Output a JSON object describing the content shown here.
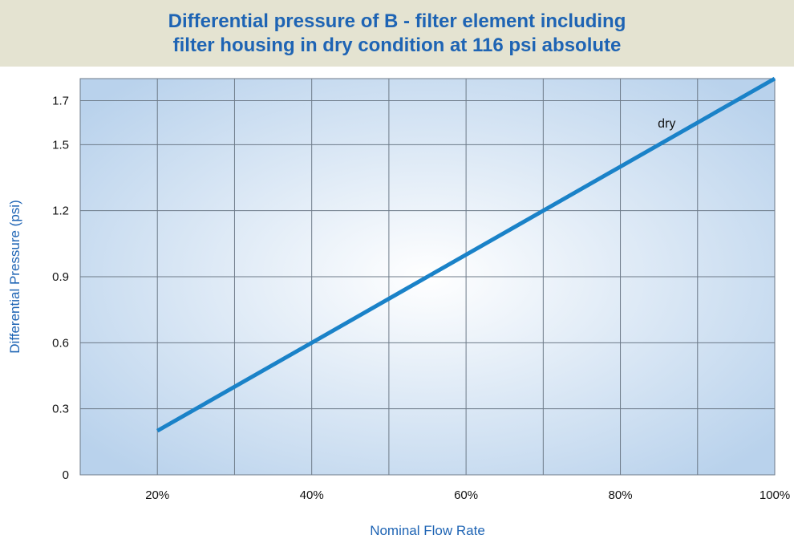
{
  "chart_data": {
    "type": "line",
    "title_lines": [
      "Differential pressure of B - filter element including",
      "filter housing in dry condition at 116 psi absolute"
    ],
    "xlabel": "Nominal Flow Rate",
    "ylabel": "Differential Pressure (psi)",
    "x_ticks": [
      {
        "value": 20,
        "label": "20%"
      },
      {
        "value": 40,
        "label": "40%"
      },
      {
        "value": 60,
        "label": "60%"
      },
      {
        "value": 80,
        "label": "80%"
      },
      {
        "value": 100,
        "label": "100%"
      }
    ],
    "y_ticks": [
      {
        "value": 0,
        "label": "0"
      },
      {
        "value": 0.3,
        "label": "0.3"
      },
      {
        "value": 0.6,
        "label": "0.6"
      },
      {
        "value": 0.9,
        "label": "0.9"
      },
      {
        "value": 1.2,
        "label": "1.2"
      },
      {
        "value": 1.5,
        "label": "1.5"
      },
      {
        "value": 1.7,
        "label": "1.7"
      }
    ],
    "xlim": [
      10,
      100
    ],
    "ylim": [
      0,
      1.8
    ],
    "x_gridlines": [
      10,
      20,
      30,
      40,
      50,
      60,
      70,
      80,
      90,
      100
    ],
    "grid": true,
    "series": [
      {
        "name": "dry",
        "color": "#1a82c8",
        "points": [
          [
            20,
            0.2
          ],
          [
            100,
            1.8
          ]
        ],
        "label_at": [
          86,
          1.6
        ]
      }
    ],
    "colors": {
      "title_text": "#1e64b4",
      "title_band": "#e4e3d1",
      "axis_label": "#1e64b4",
      "plot_edge": "#b9d2ec",
      "plot_center": "#ffffff",
      "grid": "#6d7a88"
    }
  }
}
